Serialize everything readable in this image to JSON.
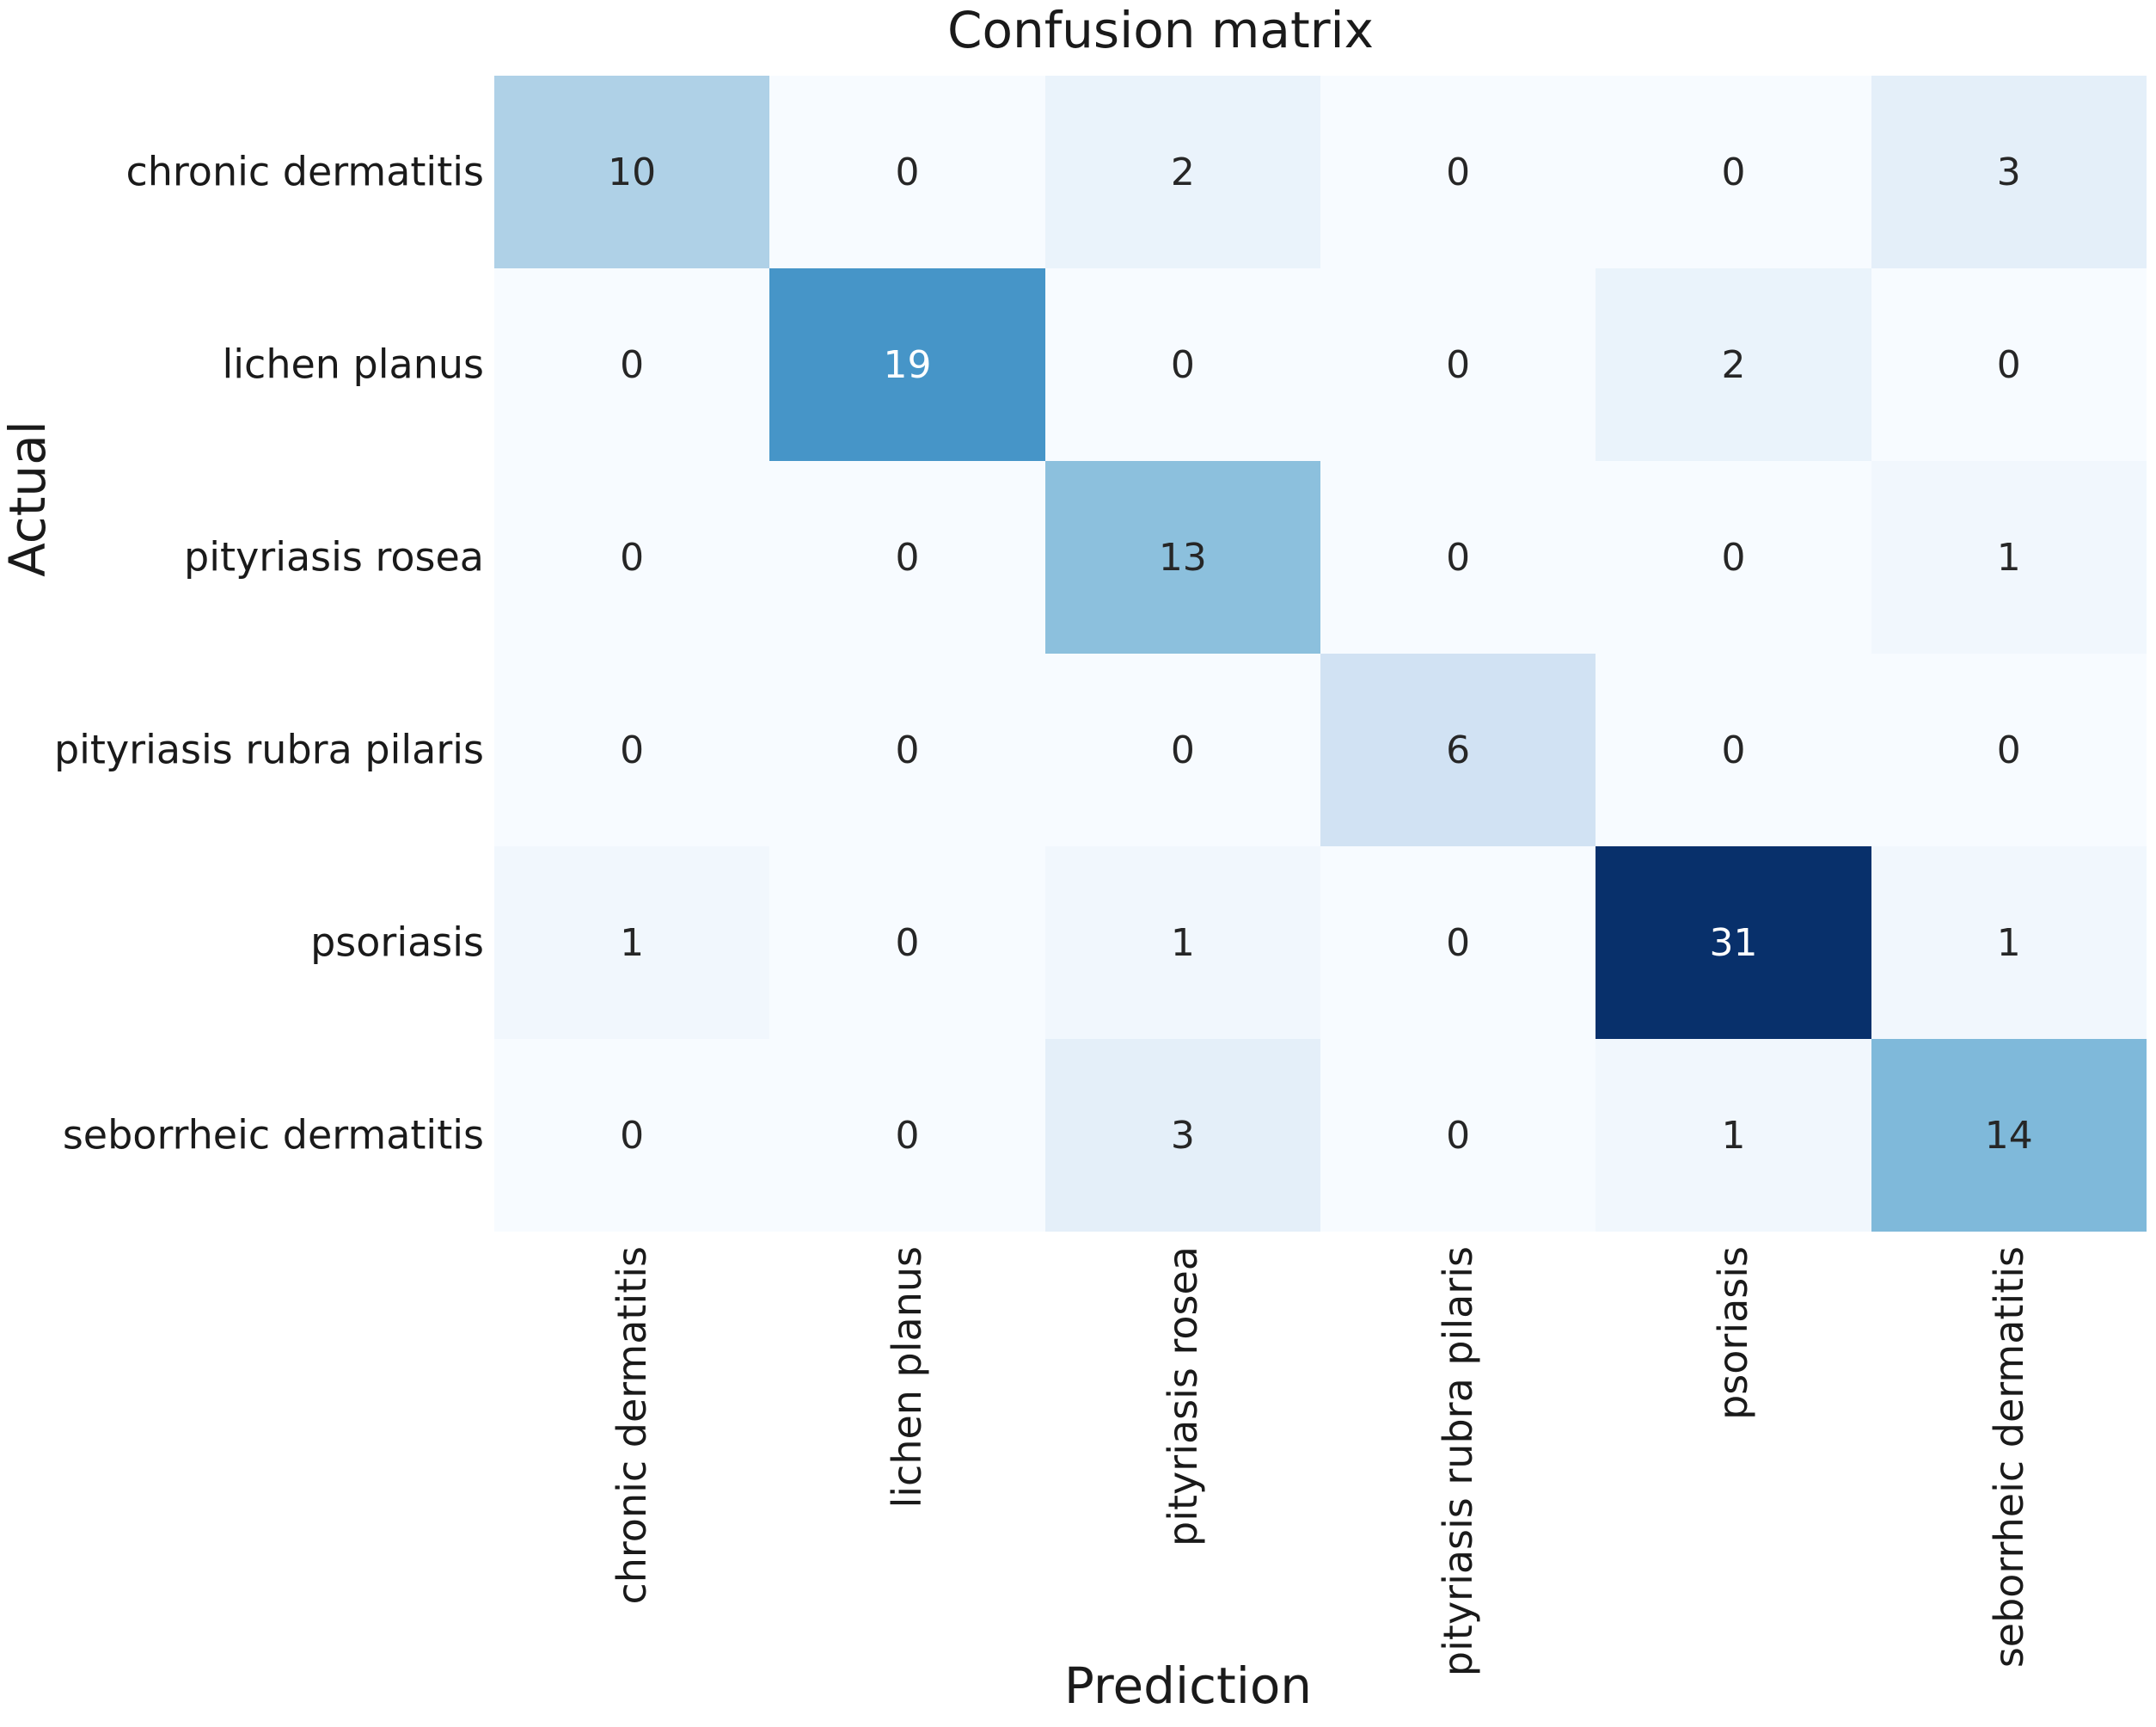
{
  "title": "Confusion matrix",
  "chart_data": {
    "type": "heatmap",
    "title": "Confusion matrix",
    "xlabel": "Prediction",
    "ylabel": "Actual",
    "x_tick_labels": [
      "chronic dermatitis",
      "lichen planus",
      "pityriasis rosea",
      "pityriasis rubra pilaris",
      "psoriasis",
      "seborrheic dermatitis"
    ],
    "y_tick_labels": [
      "chronic dermatitis",
      "lichen planus",
      "pityriasis rosea",
      "pityriasis rubra pilaris",
      "psoriasis",
      "seborrheic dermatitis"
    ],
    "matrix": [
      [
        10,
        0,
        2,
        0,
        0,
        3
      ],
      [
        0,
        19,
        0,
        0,
        2,
        0
      ],
      [
        0,
        0,
        13,
        0,
        0,
        1
      ],
      [
        0,
        0,
        0,
        6,
        0,
        0
      ],
      [
        1,
        0,
        1,
        0,
        31,
        1
      ],
      [
        0,
        0,
        3,
        0,
        1,
        14
      ]
    ],
    "vmin": 0,
    "vmax": 31,
    "colormap": "Blues",
    "colorbar": false,
    "grid": false,
    "colors": {
      "cell_min": "#f7fbff",
      "cell_max": "#08306b",
      "annotation_dark": "#262626",
      "annotation_light": "#ffffff",
      "label_text": "#1a1a1a",
      "background": "#ffffff"
    }
  }
}
